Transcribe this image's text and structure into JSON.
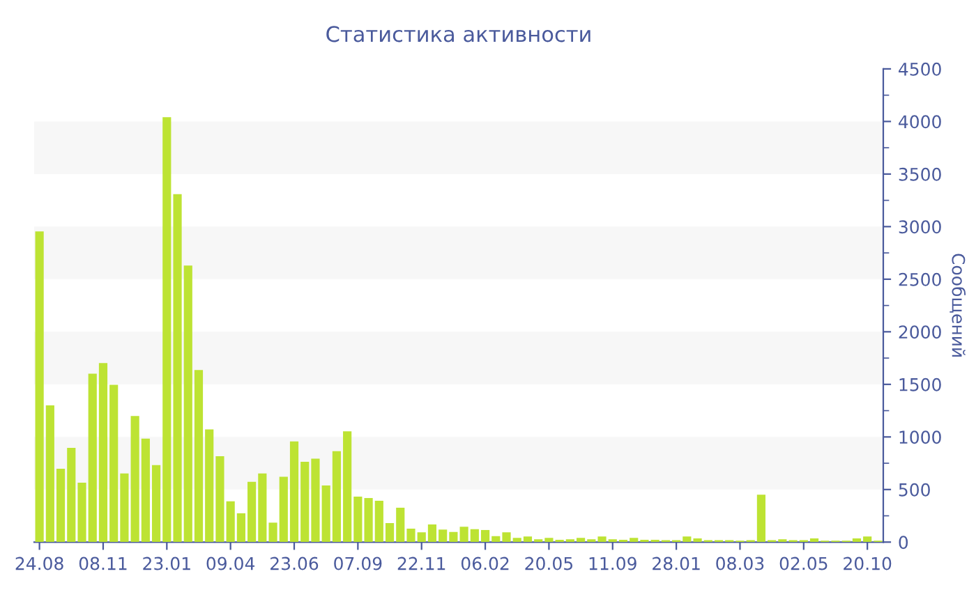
{
  "chart_data": {
    "type": "bar",
    "title": "Статистика активности",
    "ylabel": "Сообщений",
    "categories": [
      "24.08",
      null,
      null,
      null,
      null,
      null,
      "08.11",
      null,
      null,
      null,
      null,
      null,
      "23.01",
      null,
      null,
      null,
      null,
      null,
      "09.04",
      null,
      null,
      null,
      null,
      null,
      "23.06",
      null,
      null,
      null,
      null,
      null,
      "07.09",
      null,
      null,
      null,
      null,
      null,
      "22.11",
      null,
      null,
      null,
      null,
      null,
      "06.02",
      null,
      null,
      null,
      null,
      null,
      "20.05",
      null,
      null,
      null,
      null,
      null,
      "11.09",
      null,
      null,
      null,
      null,
      null,
      "28.01",
      null,
      null,
      null,
      null,
      null,
      "08.03",
      null,
      null,
      null,
      null,
      null,
      "02.05",
      null,
      null,
      null,
      null,
      null,
      "20.10",
      null
    ],
    "values": [
      2955,
      1301,
      697,
      896,
      565,
      1601,
      1703,
      1496,
      653,
      1200,
      984,
      732,
      4041,
      3309,
      2630,
      1637,
      1072,
      816,
      388,
      274,
      574,
      653,
      185,
      622,
      957,
      763,
      794,
      538,
      865,
      1054,
      432,
      419,
      393,
      181,
      327,
      128,
      93,
      168,
      119,
      97,
      146,
      123,
      115,
      57,
      93,
      40,
      53,
      26,
      40,
      22,
      26,
      40,
      26,
      53,
      26,
      22,
      40,
      22,
      22,
      18,
      18,
      53,
      35,
      18,
      18,
      18,
      13,
      18,
      450,
      18,
      26,
      18,
      18,
      35,
      13,
      13,
      13,
      35,
      53,
      13
    ],
    "color": "#bde333",
    "ylim": [
      0,
      4500
    ],
    "yticks": [
      0,
      500,
      1000,
      1500,
      2000,
      2500,
      3000,
      3500,
      4000,
      4500
    ],
    "bands": [
      {
        "axis": "y",
        "from": 500,
        "to": 1000,
        "color": "#f7f7f7"
      },
      {
        "axis": "y",
        "from": 1500,
        "to": 2000,
        "color": "#f7f7f7"
      },
      {
        "axis": "y",
        "from": 2500,
        "to": 3000,
        "color": "#f7f7f7"
      },
      {
        "axis": "y",
        "from": 3500,
        "to": 4000,
        "color": "#f7f7f7"
      }
    ],
    "grid": false,
    "legend": false
  }
}
